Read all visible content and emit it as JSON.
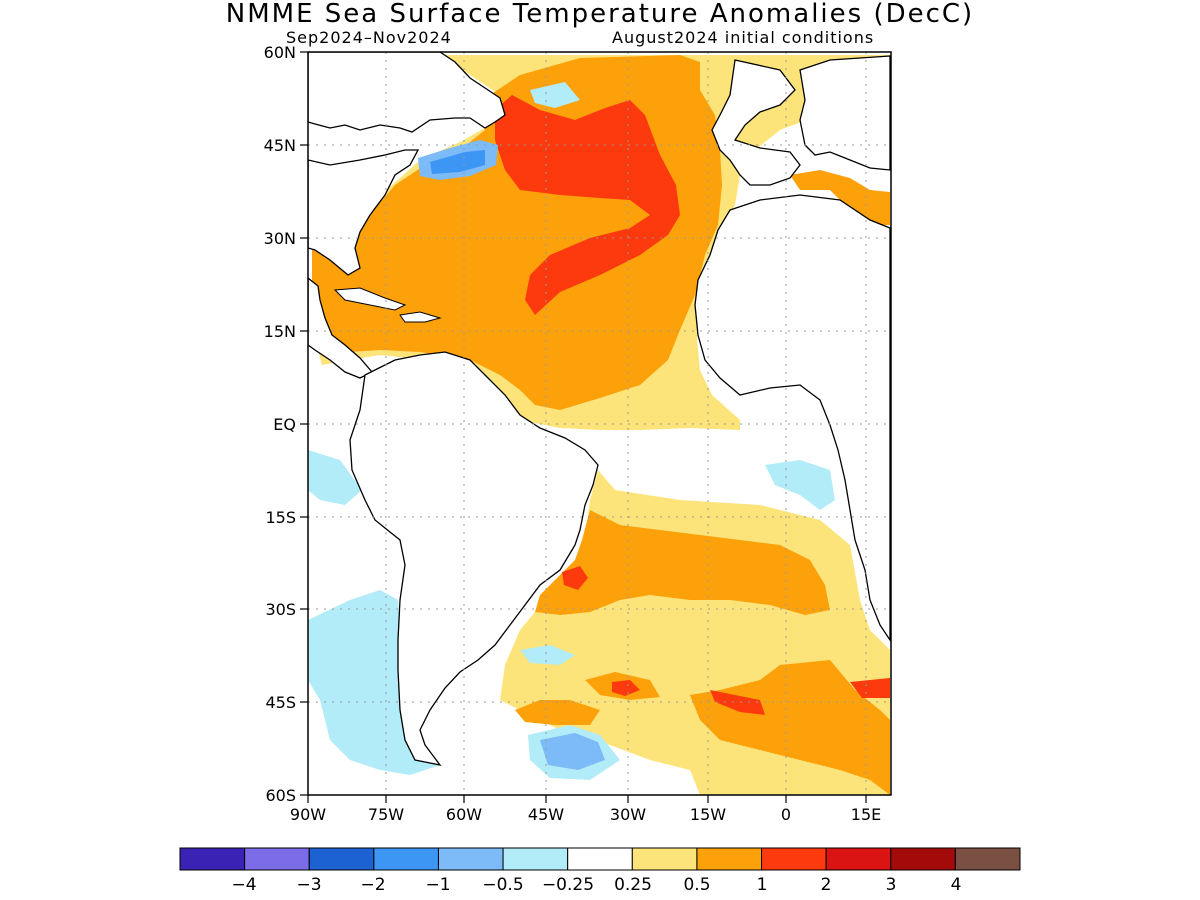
{
  "title": "NMME Sea Surface Temperature Anomalies (DecC)",
  "subtitle_left": "Sep2024–Nov2024",
  "subtitle_right": "August2024 initial conditions",
  "lat_labels": [
    "60N",
    "45N",
    "30N",
    "15N",
    "EQ",
    "15S",
    "30S",
    "45S",
    "60S"
  ],
  "lon_labels": [
    "90W",
    "75W",
    "60W",
    "45W",
    "30W",
    "15W",
    "0",
    "15E"
  ],
  "colorbar": {
    "colors": [
      "#3a22b4",
      "#7c6ce8",
      "#1d62d2",
      "#3d96f4",
      "#7cbaf8",
      "#b1ecf8",
      "#ffffff",
      "#fde47a",
      "#fca10a",
      "#fc3a0e",
      "#d91412",
      "#a30a0a",
      "#7a5043"
    ],
    "labels": [
      "−4",
      "−3",
      "−2",
      "−1",
      "−0.5",
      "−0.25",
      "0.25",
      "0.5",
      "1",
      "2",
      "3",
      "4"
    ]
  }
}
